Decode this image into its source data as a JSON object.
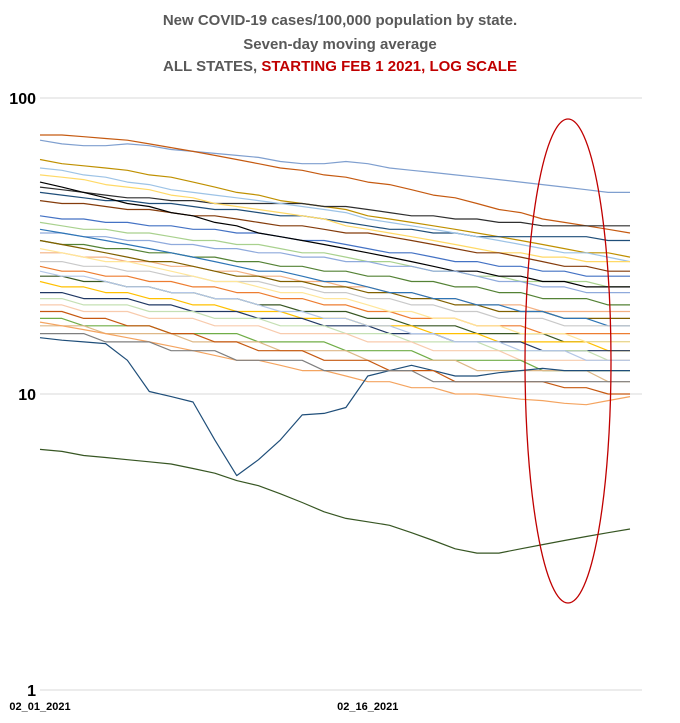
{
  "title_line1": "New COVID-19 cases/100,000 population by state.",
  "title_line2": "Seven-day moving average",
  "title_line3_prefix": "ALL STATES, ",
  "title_line3_highlight": "STARTING FEB 1 2021, LOG SCALE",
  "colors": {
    "title": "#595959",
    "highlight": "#c00000",
    "grid": "#d9d9d9",
    "ellipse": "#c00000"
  },
  "chart_data": {
    "type": "line",
    "scale": "log",
    "ylim": [
      1,
      100
    ],
    "ytick_labels": [
      "100",
      "10",
      "1"
    ],
    "yticks": [
      100,
      10,
      1
    ],
    "x": [
      1,
      2,
      3,
      4,
      5,
      6,
      7,
      8,
      9,
      10,
      11,
      12,
      13,
      14,
      15,
      16,
      17,
      18,
      19,
      20,
      21,
      22,
      23,
      24,
      25,
      26,
      27,
      28
    ],
    "xtick_labels": [
      "02_01_2021",
      "02_16_2021"
    ],
    "xtick_positions": [
      1,
      16
    ],
    "grid": true,
    "legend": "none",
    "annotation": "red ellipse around the last week of the period",
    "series": [
      {
        "color": "#7f9fcf",
        "values": [
          72,
          70,
          69,
          69,
          70,
          69,
          67,
          66,
          65,
          64,
          63,
          61,
          60,
          60,
          61,
          60,
          58,
          57,
          56,
          55,
          54,
          53,
          52,
          51,
          50,
          49,
          48,
          48
        ]
      },
      {
        "color": "#c55a11",
        "values": [
          75,
          75,
          74,
          73,
          72,
          70,
          68,
          66,
          64,
          62,
          60,
          58,
          57,
          55,
          54,
          52,
          51,
          49,
          47,
          46,
          44,
          42,
          41,
          39,
          38,
          37,
          36,
          35
        ]
      },
      {
        "color": "#bf9000",
        "values": [
          62,
          60,
          59,
          58,
          57,
          55,
          54,
          52,
          50,
          48,
          47,
          45,
          44,
          43,
          42,
          40,
          39,
          38,
          37,
          36,
          35,
          34,
          33,
          32,
          31,
          30,
          30,
          29
        ]
      },
      {
        "color": "#2f2f2f",
        "values": [
          50,
          49,
          48,
          47,
          46,
          46,
          45,
          45,
          44,
          44,
          44,
          44,
          44,
          43,
          43,
          42,
          41,
          40,
          40,
          39,
          39,
          38,
          38,
          37,
          37,
          37,
          37,
          37
        ]
      },
      {
        "color": "#1f4e79",
        "values": [
          48,
          47,
          46,
          45,
          45,
          44,
          44,
          43,
          42,
          42,
          41,
          40,
          40,
          39,
          38,
          37,
          36,
          36,
          35,
          35,
          34,
          34,
          34,
          34,
          34,
          34,
          33,
          33
        ]
      },
      {
        "color": "#9dc3e6",
        "values": [
          58,
          57,
          55,
          54,
          52,
          51,
          49,
          48,
          47,
          46,
          45,
          44,
          43,
          42,
          41,
          39,
          38,
          37,
          36,
          35,
          34,
          33,
          32,
          31,
          30,
          30,
          29,
          28
        ]
      },
      {
        "color": "#ffd966",
        "values": [
          55,
          54,
          53,
          51,
          50,
          49,
          47,
          46,
          44,
          43,
          42,
          41,
          40,
          39,
          37,
          36,
          35,
          34,
          33,
          32,
          31,
          30,
          30,
          29,
          29,
          28,
          28,
          28
        ]
      },
      {
        "color": "#843c0c",
        "values": [
          45,
          44,
          44,
          43,
          42,
          42,
          41,
          40,
          40,
          39,
          38,
          37,
          37,
          36,
          35,
          35,
          34,
          33,
          32,
          31,
          30,
          30,
          29,
          28,
          27,
          27,
          26,
          26
        ]
      },
      {
        "color": "#4472c4",
        "values": [
          40,
          39,
          39,
          38,
          38,
          37,
          37,
          36,
          36,
          35,
          35,
          34,
          33,
          33,
          32,
          31,
          30,
          30,
          29,
          28,
          28,
          27,
          27,
          26,
          26,
          25,
          25,
          25
        ]
      },
      {
        "color": "#a9d18e",
        "values": [
          38,
          37,
          36,
          36,
          35,
          35,
          34,
          33,
          33,
          32,
          32,
          31,
          30,
          30,
          29,
          28,
          28,
          27,
          26,
          26,
          25,
          25,
          24,
          24,
          24,
          24,
          23,
          23
        ]
      },
      {
        "color": "#000000",
        "values": [
          52,
          50,
          48,
          46,
          44,
          43,
          41,
          40,
          38,
          37,
          35,
          34,
          33,
          32,
          31,
          30,
          29,
          28,
          27,
          26,
          26,
          25,
          25,
          24,
          24,
          23,
          23,
          23
        ]
      },
      {
        "color": "#8faadc",
        "values": [
          35,
          35,
          34,
          34,
          33,
          33,
          32,
          32,
          31,
          31,
          30,
          30,
          29,
          29,
          28,
          28,
          27,
          27,
          26,
          26,
          25,
          24,
          24,
          23,
          23,
          22,
          22,
          22
        ]
      },
      {
        "color": "#548235",
        "values": [
          33,
          32,
          32,
          31,
          31,
          30,
          30,
          29,
          29,
          28,
          28,
          27,
          27,
          26,
          26,
          25,
          25,
          24,
          24,
          23,
          23,
          22,
          22,
          21,
          21,
          21,
          20,
          20
        ]
      },
      {
        "color": "#f4b183",
        "values": [
          30,
          30,
          29,
          29,
          28,
          28,
          27,
          27,
          26,
          26,
          25,
          25,
          24,
          24,
          23,
          23,
          22,
          22,
          21,
          21,
          20,
          20,
          20,
          19,
          19,
          19,
          19,
          19
        ]
      },
      {
        "color": "#806000",
        "values": [
          33,
          32,
          31,
          30,
          29,
          28,
          28,
          27,
          26,
          25,
          25,
          24,
          24,
          23,
          23,
          22,
          22,
          21,
          21,
          20,
          20,
          19,
          19,
          19,
          18,
          18,
          18,
          18
        ]
      },
      {
        "color": "#2e75b6",
        "values": [
          36,
          35,
          34,
          33,
          32,
          31,
          30,
          29,
          28,
          27,
          26,
          26,
          25,
          24,
          24,
          23,
          22,
          22,
          21,
          21,
          20,
          20,
          19,
          19,
          18,
          18,
          17,
          17
        ]
      },
      {
        "color": "#c9c9c9",
        "values": [
          28,
          28,
          27,
          27,
          26,
          26,
          25,
          25,
          24,
          24,
          24,
          23,
          23,
          22,
          22,
          21,
          21,
          20,
          20,
          19,
          19,
          18,
          18,
          18,
          17,
          17,
          17,
          17
        ]
      },
      {
        "color": "#ed7d31",
        "values": [
          27,
          26,
          26,
          25,
          25,
          24,
          24,
          23,
          23,
          22,
          22,
          21,
          21,
          20,
          20,
          19,
          19,
          18,
          18,
          18,
          17,
          17,
          17,
          16,
          16,
          16,
          16,
          16
        ]
      },
      {
        "color": "#385723",
        "values": [
          25,
          25,
          24,
          24,
          23,
          23,
          22,
          22,
          21,
          21,
          20,
          20,
          19,
          19,
          19,
          18,
          18,
          17,
          17,
          17,
          16,
          16,
          16,
          16,
          15,
          15,
          15,
          15
        ]
      },
      {
        "color": "#ffc000",
        "values": [
          24,
          23,
          23,
          22,
          22,
          21,
          21,
          20,
          20,
          19,
          19,
          19,
          18,
          18,
          18,
          17,
          17,
          17,
          16,
          16,
          16,
          15,
          15,
          15,
          15,
          15,
          14,
          14
        ]
      },
      {
        "color": "#203864",
        "values": [
          22,
          22,
          21,
          21,
          21,
          20,
          20,
          19,
          19,
          19,
          18,
          18,
          18,
          17,
          17,
          17,
          16,
          16,
          16,
          15,
          15,
          15,
          15,
          14,
          14,
          14,
          14,
          14
        ]
      },
      {
        "color": "#c5e0b4",
        "values": [
          21,
          21,
          20,
          20,
          20,
          19,
          19,
          19,
          18,
          18,
          18,
          17,
          17,
          17,
          16,
          16,
          16,
          15,
          15,
          15,
          15,
          14,
          14,
          14,
          14,
          14,
          13,
          13
        ]
      },
      {
        "color": "#f8cbad",
        "values": [
          20,
          20,
          19,
          19,
          19,
          18,
          18,
          18,
          17,
          17,
          17,
          16,
          16,
          16,
          16,
          15,
          15,
          15,
          14,
          14,
          14,
          14,
          13,
          13,
          13,
          13,
          13,
          13
        ]
      },
      {
        "color": "#70ad47",
        "values": [
          18,
          18,
          17,
          17,
          17,
          17,
          16,
          16,
          16,
          16,
          15,
          15,
          15,
          15,
          14,
          14,
          14,
          14,
          13,
          13,
          13,
          13,
          13,
          12,
          12,
          12,
          12,
          12
        ]
      },
      {
        "color": "#deb887",
        "values": [
          17,
          17,
          17,
          16,
          16,
          16,
          16,
          15,
          15,
          15,
          15,
          14,
          14,
          14,
          14,
          13,
          13,
          13,
          13,
          13,
          12,
          12,
          12,
          12,
          12,
          12,
          11,
          11
        ]
      },
      {
        "color": "#b4c7e7",
        "values": [
          26,
          25,
          25,
          24,
          23,
          23,
          22,
          22,
          21,
          21,
          20,
          19,
          19,
          18,
          18,
          17,
          17,
          16,
          16,
          15,
          15,
          15,
          14,
          14,
          14,
          13,
          13,
          13
        ]
      },
      {
        "color": "#ffe699",
        "values": [
          31,
          30,
          29,
          28,
          28,
          27,
          26,
          25,
          24,
          24,
          23,
          22,
          22,
          21,
          21,
          20,
          19,
          19,
          18,
          18,
          17,
          17,
          16,
          16,
          16,
          15,
          15,
          15
        ]
      },
      {
        "color": "#f4a460",
        "values": [
          17.5,
          17,
          16.5,
          16,
          15.5,
          15,
          14.5,
          14,
          13.5,
          13,
          13,
          12.5,
          12,
          12,
          11.5,
          11,
          11,
          10.5,
          10.5,
          10,
          10,
          9.8,
          9.6,
          9.5,
          9.3,
          9.2,
          9.5,
          9.8
        ]
      },
      {
        "color": "#1f4e79",
        "values": [
          15.5,
          15.2,
          15,
          14.8,
          13,
          10.2,
          9.8,
          9.4,
          7,
          5.3,
          6,
          7,
          8.5,
          8.6,
          9,
          11.5,
          12,
          12.5,
          12,
          11.5,
          11.5,
          11.8,
          12,
          12.2,
          12,
          12,
          12,
          12
        ]
      },
      {
        "color": "#375623",
        "values": [
          6.5,
          6.4,
          6.2,
          6.1,
          6.0,
          5.9,
          5.8,
          5.6,
          5.4,
          5.1,
          4.9,
          4.6,
          4.3,
          4.0,
          3.8,
          3.7,
          3.6,
          3.4,
          3.2,
          3.0,
          2.9,
          2.9,
          3.0,
          3.1,
          3.2,
          3.3,
          3.4,
          3.5
        ]
      },
      {
        "color": "#c65911",
        "values": [
          19,
          19,
          18,
          18,
          17,
          17,
          16,
          16,
          15,
          15,
          14,
          14,
          14,
          13,
          13,
          13,
          12,
          12,
          12,
          11,
          11,
          11,
          11,
          11,
          10.5,
          10.5,
          10,
          10
        ]
      },
      {
        "color": "#7f7f7f",
        "values": [
          16,
          16,
          16,
          15,
          15,
          15,
          14,
          14,
          14,
          13,
          13,
          13,
          13,
          12,
          12,
          12,
          12,
          12,
          11,
          11,
          11,
          11,
          11,
          11,
          11,
          11,
          11,
          11
        ]
      }
    ]
  }
}
